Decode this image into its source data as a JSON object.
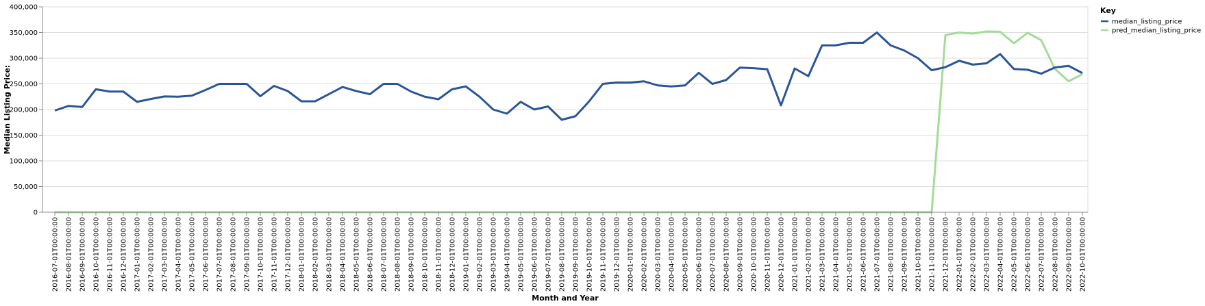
{
  "chart_data": {
    "type": "line",
    "xlabel": "Month and Year",
    "ylabel": "Median Listing Price:",
    "ylim": [
      0,
      400000
    ],
    "yticks": [
      "0",
      "50,000",
      "100,000",
      "150,000",
      "200,000",
      "250,000",
      "300,000",
      "350,000",
      "400,000"
    ],
    "ytick_values": [
      0,
      50000,
      100000,
      150000,
      200000,
      250000,
      300000,
      350000,
      400000
    ],
    "grid": true,
    "legend": {
      "title": "Key",
      "placement": "top-right"
    },
    "x": [
      "2016-07-01T00:00:00",
      "2016-08-01T00:00:00",
      "2016-09-01T00:00:00",
      "2016-10-01T00:00:00",
      "2016-11-01T00:00:00",
      "2016-12-01T00:00:00",
      "2017-01-01T00:00:00",
      "2017-02-01T00:00:00",
      "2017-03-01T00:00:00",
      "2017-04-01T00:00:00",
      "2017-05-01T00:00:00",
      "2017-06-01T00:00:00",
      "2017-07-01T00:00:00",
      "2017-08-01T00:00:00",
      "2017-09-01T00:00:00",
      "2017-10-01T00:00:00",
      "2017-11-01T00:00:00",
      "2017-12-01T00:00:00",
      "2018-01-01T00:00:00",
      "2018-02-01T00:00:00",
      "2018-03-01T00:00:00",
      "2018-04-01T00:00:00",
      "2018-05-01T00:00:00",
      "2018-06-01T00:00:00",
      "2018-07-01T00:00:00",
      "2018-08-01T00:00:00",
      "2018-09-01T00:00:00",
      "2018-10-01T00:00:00",
      "2018-11-01T00:00:00",
      "2018-12-01T00:00:00",
      "2019-01-01T00:00:00",
      "2019-02-01T00:00:00",
      "2019-03-01T00:00:00",
      "2019-04-01T00:00:00",
      "2019-05-01T00:00:00",
      "2019-06-01T00:00:00",
      "2019-07-01T00:00:00",
      "2019-08-01T00:00:00",
      "2019-09-01T00:00:00",
      "2019-10-01T00:00:00",
      "2019-11-01T00:00:00",
      "2019-12-01T00:00:00",
      "2020-01-01T00:00:00",
      "2020-02-01T00:00:00",
      "2020-03-01T00:00:00",
      "2020-04-01T00:00:00",
      "2020-05-01T00:00:00",
      "2020-06-01T00:00:00",
      "2020-07-01T00:00:00",
      "2020-08-01T00:00:00",
      "2020-09-01T00:00:00",
      "2020-10-01T00:00:00",
      "2020-11-01T00:00:00",
      "2020-12-01T00:00:00",
      "2021-01-01T00:00:00",
      "2021-02-01T00:00:00",
      "2021-03-01T00:00:00",
      "2021-04-01T00:00:00",
      "2021-05-01T00:00:00",
      "2021-06-01T00:00:00",
      "2021-07-01T00:00:00",
      "2021-08-01T00:00:00",
      "2021-09-01T00:00:00",
      "2021-10-01T00:00:00",
      "2021-11-01T00:00:00",
      "2021-12-01T00:00:00",
      "2022-01-01T00:00:00",
      "2022-02-01T00:00:00",
      "2022-03-01T00:00:00",
      "2022-04-01T00:00:00",
      "2022-05-01T00:00:00",
      "2022-06-01T00:00:00",
      "2022-07-01T00:00:00",
      "2022-08-01T00:00:00",
      "2022-09-01T00:00:00",
      "2022-10-01T00:00:00"
    ],
    "series": [
      {
        "name": "median_listing_price",
        "color": "#2a5599",
        "values": [
          198000,
          207000,
          205000,
          239500,
          235000,
          235000,
          215000,
          220500,
          225500,
          225000,
          227000,
          238000,
          250000,
          250000,
          250000,
          226000,
          246000,
          236000,
          216000,
          216000,
          229900,
          243900,
          236000,
          229900,
          250000,
          250000,
          235000,
          225000,
          220000,
          239500,
          245000,
          224900,
          200000,
          192000,
          215000,
          200000,
          206000,
          180000,
          187000,
          216000,
          250000,
          252500,
          252500,
          255000,
          247000,
          245000,
          247000,
          271500,
          249900,
          257500,
          281600,
          280500,
          278500,
          208000,
          280000,
          265000,
          325000,
          325000,
          330000,
          330000,
          350000,
          325000,
          315000,
          300000,
          276500,
          282500,
          295000,
          287500,
          290000,
          308000,
          279000,
          277500,
          269900,
          282000,
          285000,
          271000
        ]
      },
      {
        "name": "pred_median_listing_price",
        "color": "#a2dc97",
        "values": [
          0,
          0,
          0,
          0,
          0,
          0,
          0,
          0,
          0,
          0,
          0,
          0,
          0,
          0,
          0,
          0,
          0,
          0,
          0,
          0,
          0,
          0,
          0,
          0,
          0,
          0,
          0,
          0,
          0,
          0,
          0,
          0,
          0,
          0,
          0,
          0,
          0,
          0,
          0,
          0,
          0,
          0,
          0,
          0,
          0,
          0,
          0,
          0,
          0,
          0,
          0,
          0,
          0,
          0,
          0,
          0,
          0,
          0,
          0,
          0,
          0,
          0,
          0,
          0,
          0,
          345000,
          350000,
          348000,
          352000,
          351500,
          329000,
          349500,
          335000,
          279000,
          255000,
          269000
        ]
      }
    ]
  }
}
